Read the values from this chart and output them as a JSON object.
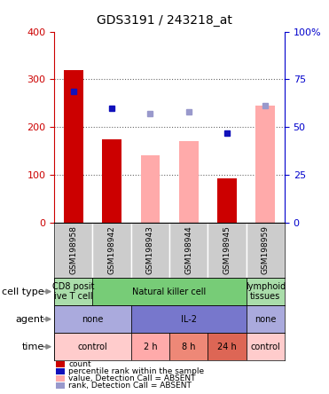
{
  "title": "GDS3191 / 243218_at",
  "samples": [
    "GSM198958",
    "GSM198942",
    "GSM198943",
    "GSM198944",
    "GSM198945",
    "GSM198959"
  ],
  "count_values": [
    320,
    175,
    null,
    null,
    93,
    null
  ],
  "count_color": "#cc0000",
  "value_absent_values": [
    null,
    null,
    140,
    170,
    null,
    245
  ],
  "value_absent_color": "#ffaaaa",
  "rank_present_values": [
    275,
    240,
    null,
    null,
    188,
    null
  ],
  "rank_present_color": "#1111bb",
  "rank_absent_values": [
    null,
    null,
    228,
    232,
    null,
    245
  ],
  "rank_absent_color": "#9999cc",
  "left_ylim": [
    0,
    400
  ],
  "right_ylim": [
    0,
    100
  ],
  "left_yticks": [
    0,
    100,
    200,
    300,
    400
  ],
  "right_yticks": [
    0,
    25,
    50,
    75,
    100
  ],
  "right_yticklabels": [
    "0",
    "25",
    "50",
    "75",
    "100%"
  ],
  "cell_types": [
    {
      "label": "CD8 posit\nive T cell",
      "cols": [
        0,
        0
      ],
      "color": "#aaddaa"
    },
    {
      "label": "Natural killer cell",
      "cols": [
        1,
        4
      ],
      "color": "#77cc77"
    },
    {
      "label": "lymphoid\ntissues",
      "cols": [
        5,
        5
      ],
      "color": "#aaddaa"
    }
  ],
  "agents": [
    {
      "label": "none",
      "cols": [
        0,
        1
      ],
      "color": "#aaaadd"
    },
    {
      "label": "IL-2",
      "cols": [
        2,
        4
      ],
      "color": "#7777cc"
    },
    {
      "label": "none",
      "cols": [
        5,
        5
      ],
      "color": "#aaaadd"
    }
  ],
  "times": [
    {
      "label": "control",
      "cols": [
        0,
        1
      ],
      "color": "#ffcccc"
    },
    {
      "label": "2 h",
      "cols": [
        2,
        2
      ],
      "color": "#ffaaaa"
    },
    {
      "label": "8 h",
      "cols": [
        3,
        3
      ],
      "color": "#ee8877"
    },
    {
      "label": "24 h",
      "cols": [
        4,
        4
      ],
      "color": "#dd6655"
    },
    {
      "label": "control",
      "cols": [
        5,
        5
      ],
      "color": "#ffcccc"
    }
  ],
  "legend_items": [
    {
      "label": "count",
      "color": "#cc0000"
    },
    {
      "label": "percentile rank within the sample",
      "color": "#1111bb"
    },
    {
      "label": "value, Detection Call = ABSENT",
      "color": "#ffaaaa"
    },
    {
      "label": "rank, Detection Call = ABSENT",
      "color": "#9999cc"
    }
  ],
  "sample_bg_color": "#cccccc",
  "bar_width": 0.5,
  "left_axis_color": "#cc0000",
  "right_axis_color": "#0000cc"
}
